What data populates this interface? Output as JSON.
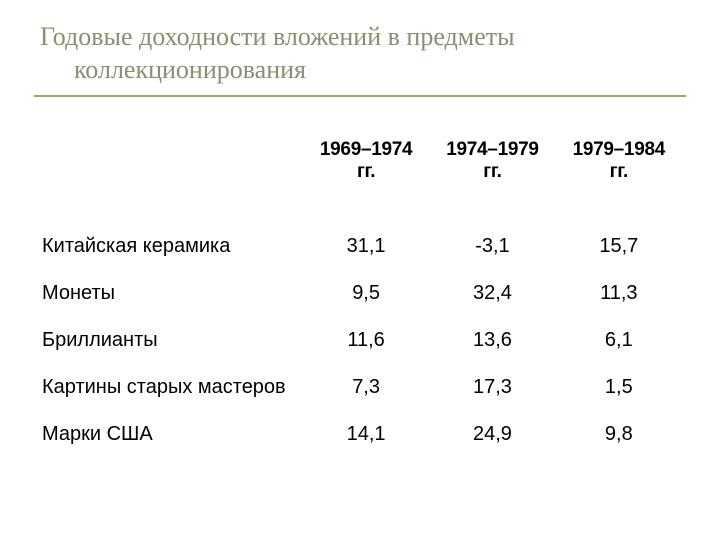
{
  "title_line1": "Годовые доходности вложений в предметы",
  "title_line2": "коллекционирования",
  "table": {
    "type": "table",
    "background_color": "#ffffff",
    "text_color": "#000000",
    "title_color": "#8f8c6f",
    "rule_color": "#a8a566",
    "header_fontsize": 19,
    "cell_fontsize": 20,
    "columns": [
      "",
      "1969–1974 гг.",
      "1974–1979 гг.",
      "1979–1984 гг."
    ],
    "rows": [
      {
        "label": "Китайская керамика",
        "v": [
          "31,1",
          "-3,1",
          "15,7"
        ]
      },
      {
        "label": "Монеты",
        "v": [
          "9,5",
          "32,4",
          "11,3"
        ]
      },
      {
        "label": "Бриллианты",
        "v": [
          "11,6",
          "13,6",
          "6,1"
        ]
      },
      {
        "label": "Картины старых мастеров",
        "v": [
          "7,3",
          "17,3",
          "1,5"
        ]
      },
      {
        "label": "Марки США",
        "v": [
          "14,1",
          "24,9",
          "9,8"
        ]
      }
    ]
  }
}
